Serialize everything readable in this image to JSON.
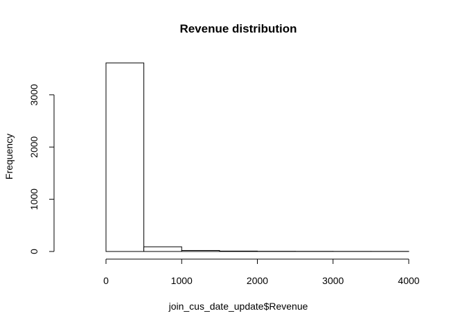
{
  "chart_data": {
    "type": "bar",
    "title": "Revenue distribution",
    "xlabel": "join_cus_date_update$Revenue",
    "ylabel": "Frequency",
    "xlim": [
      -500,
      4000
    ],
    "ylim": [
      0,
      3620
    ],
    "x_ticks": [
      0,
      1000,
      2000,
      3000,
      4000
    ],
    "y_ticks": [
      0,
      1000,
      2000,
      3000
    ],
    "bins": [
      {
        "start": -500,
        "end": 0,
        "count": 0
      },
      {
        "start": 0,
        "end": 500,
        "count": 3610
      },
      {
        "start": 500,
        "end": 1000,
        "count": 90
      },
      {
        "start": 1000,
        "end": 1500,
        "count": 20
      },
      {
        "start": 1500,
        "end": 2000,
        "count": 8
      },
      {
        "start": 2000,
        "end": 2500,
        "count": 4
      },
      {
        "start": 2500,
        "end": 3000,
        "count": 3
      },
      {
        "start": 3000,
        "end": 3500,
        "count": 2
      },
      {
        "start": 3500,
        "end": 4000,
        "count": 2
      }
    ],
    "grid": false,
    "legend": "none"
  }
}
